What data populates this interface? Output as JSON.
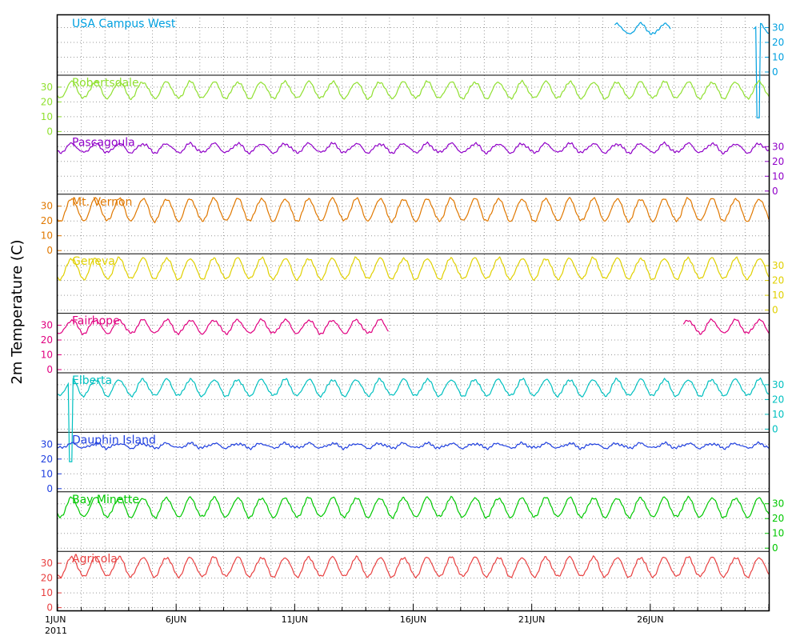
{
  "chart_data": {
    "type": "line",
    "ylabel": "2m Temperature (C)",
    "x_start": "2011-06-01",
    "x_end": "2011-07-01",
    "x_tick_labels": [
      "1JUN",
      "6JUN",
      "11JUN",
      "16JUN",
      "21JUN",
      "26JUN"
    ],
    "year_label": "2011",
    "y_ticks": [
      0,
      10,
      20,
      30
    ],
    "grid": true,
    "series": [
      {
        "name": "USA Campus West",
        "color": "#00a0e0",
        "axis_side": "right",
        "mean": 29,
        "amplitude": 3.5,
        "gaps": [
          [
            0,
            23.5
          ],
          [
            25.9,
            29.35
          ]
        ],
        "anomalies": [
          {
            "day": 29.55,
            "value": -31
          }
        ]
      },
      {
        "name": "Robertsdale",
        "color": "#90e030",
        "axis_side": "left",
        "mean": 28,
        "amplitude": 5.5,
        "gaps": [],
        "anomalies": []
      },
      {
        "name": "Pascagoula",
        "color": "#9000c8",
        "axis_side": "right",
        "mean": 29,
        "amplitude": 3,
        "gaps": [],
        "anomalies": []
      },
      {
        "name": "Mt. Vernon",
        "color": "#e07800",
        "axis_side": "left",
        "mean": 27.5,
        "amplitude": 7.5,
        "gaps": [],
        "anomalies": []
      },
      {
        "name": "Geneva",
        "color": "#e0d000",
        "axis_side": "right",
        "mean": 28,
        "amplitude": 7,
        "gaps": [],
        "anomalies": []
      },
      {
        "name": "Fairhope",
        "color": "#e00080",
        "axis_side": "left",
        "mean": 29,
        "amplitude": 4.5,
        "gaps": [
          [
            14.0,
            26.4
          ]
        ],
        "anomalies": []
      },
      {
        "name": "Elberta",
        "color": "#00c0c0",
        "axis_side": "right",
        "mean": 28,
        "amplitude": 5.5,
        "gaps": [],
        "anomalies": [
          {
            "day": 0.55,
            "value": -22
          }
        ]
      },
      {
        "name": "Dauphin Island",
        "color": "#2040e0",
        "axis_side": "left",
        "mean": 29,
        "amplitude": 1.5,
        "gaps": [],
        "anomalies": []
      },
      {
        "name": "Bay Minette",
        "color": "#00c800",
        "axis_side": "right",
        "mean": 27.5,
        "amplitude": 6.5,
        "gaps": [],
        "anomalies": []
      },
      {
        "name": "Agricola",
        "color": "#e84040",
        "axis_side": "left",
        "mean": 27.5,
        "amplitude": 6.5,
        "gaps": [],
        "anomalies": []
      }
    ]
  }
}
